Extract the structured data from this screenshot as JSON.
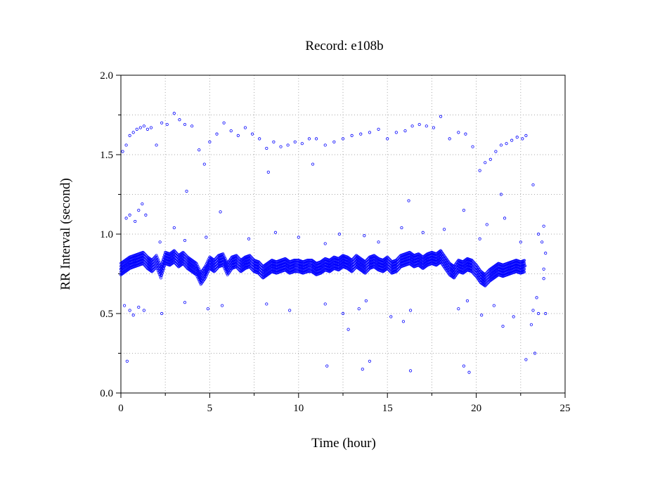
{
  "chart_data": {
    "type": "scatter",
    "title": "Record:  e108b",
    "xlabel": "Time (hour)",
    "ylabel": "RR Interval (second)",
    "xlim": [
      0,
      25
    ],
    "ylim": [
      0.0,
      2.0
    ],
    "x_ticks": [
      "0",
      "5",
      "10",
      "15",
      "20",
      "25"
    ],
    "y_ticks": [
      "0.0",
      "0.5",
      "1.0",
      "1.5",
      "2.0"
    ],
    "grid": true,
    "marker_color": "#0000ff",
    "marker": "open-circle",
    "series": [
      {
        "x": [
          0.0,
          0.25,
          0.5,
          0.75,
          1.0,
          1.25,
          1.5,
          1.75,
          2.0,
          2.25,
          2.5,
          2.75,
          3.0,
          3.25,
          3.5,
          3.75,
          4.0,
          4.25,
          4.5,
          4.75,
          5.0,
          5.25,
          5.5,
          5.75,
          6.0,
          6.25,
          6.5,
          6.75,
          7.0,
          7.25,
          7.5,
          7.75,
          8.0,
          8.25,
          8.5,
          8.75,
          9.0,
          9.25,
          9.5,
          9.75,
          10.0,
          10.25,
          10.5,
          10.75,
          11.0,
          11.25,
          11.5,
          11.75,
          12.0,
          12.25,
          12.5,
          12.75,
          13.0,
          13.25,
          13.5,
          13.75,
          14.0,
          14.25,
          14.5,
          14.75,
          15.0,
          15.25,
          15.5,
          15.75,
          16.0,
          16.25,
          16.5,
          16.75,
          17.0,
          17.25,
          17.5,
          17.75,
          18.0,
          18.25,
          18.5,
          18.75,
          19.0,
          19.25,
          19.5,
          19.75,
          20.0,
          20.25,
          20.5,
          20.75,
          21.0,
          21.25,
          21.5,
          21.75,
          22.0,
          22.25,
          22.5,
          22.75,
          0.1,
          0.3,
          0.5,
          0.7,
          0.9,
          1.1,
          1.3,
          1.5,
          1.7,
          2.0,
          2.3,
          2.6,
          3.0,
          3.3,
          3.6,
          4.0,
          4.4,
          4.7,
          5.0,
          5.4,
          5.8,
          6.2,
          6.6,
          7.0,
          7.4,
          7.8,
          8.2,
          8.6,
          9.0,
          9.4,
          9.8,
          10.2,
          10.6,
          11.0,
          11.5,
          12.0,
          12.5,
          13.0,
          13.5,
          14.0,
          14.5,
          15.0,
          15.5,
          16.0,
          16.4,
          16.8,
          17.2,
          17.6,
          18.0,
          18.5,
          19.0,
          19.4,
          19.8,
          20.2,
          20.5,
          20.8,
          21.1,
          21.4,
          21.7,
          22.0,
          22.3,
          22.6,
          22.8,
          3.7,
          8.3,
          10.8,
          0.3,
          0.5,
          0.8,
          1.0,
          1.2,
          1.4,
          2.2,
          3.0,
          3.6,
          4.8,
          5.6,
          7.2,
          8.7,
          10.0,
          11.5,
          12.3,
          13.7,
          14.5,
          15.8,
          16.2,
          17.0,
          18.2,
          19.3,
          20.2,
          20.6,
          21.4,
          21.6,
          22.5,
          23.5,
          23.8,
          0.2,
          0.5,
          0.7,
          1.0,
          1.3,
          2.3,
          3.6,
          4.9,
          5.7,
          8.2,
          9.5,
          11.5,
          12.5,
          13.4,
          13.8,
          15.2,
          15.9,
          16.3,
          19.0,
          19.5,
          20.3,
          21.0,
          21.5,
          22.1,
          23.2,
          23.5,
          0.35,
          11.6,
          12.8,
          13.6,
          14.0,
          16.3,
          19.3,
          19.6,
          22.8,
          23.3,
          23.7,
          23.1,
          23.8,
          23.8,
          23.9,
          23.4,
          23.9,
          23.2
        ],
        "y": [
          0.78,
          0.8,
          0.82,
          0.83,
          0.84,
          0.85,
          0.82,
          0.8,
          0.83,
          0.76,
          0.85,
          0.84,
          0.86,
          0.83,
          0.85,
          0.82,
          0.8,
          0.78,
          0.72,
          0.76,
          0.82,
          0.8,
          0.83,
          0.84,
          0.78,
          0.82,
          0.83,
          0.8,
          0.82,
          0.83,
          0.8,
          0.79,
          0.76,
          0.78,
          0.8,
          0.79,
          0.8,
          0.81,
          0.79,
          0.8,
          0.8,
          0.79,
          0.8,
          0.8,
          0.78,
          0.79,
          0.81,
          0.8,
          0.82,
          0.81,
          0.83,
          0.82,
          0.8,
          0.83,
          0.81,
          0.79,
          0.82,
          0.83,
          0.81,
          0.8,
          0.82,
          0.79,
          0.8,
          0.83,
          0.84,
          0.85,
          0.83,
          0.84,
          0.82,
          0.84,
          0.85,
          0.84,
          0.86,
          0.82,
          0.78,
          0.76,
          0.8,
          0.79,
          0.81,
          0.8,
          0.77,
          0.73,
          0.71,
          0.74,
          0.76,
          0.78,
          0.77,
          0.78,
          0.79,
          0.8,
          0.79,
          0.8,
          1.52,
          1.56,
          1.62,
          1.64,
          1.66,
          1.67,
          1.68,
          1.66,
          1.67,
          1.56,
          1.7,
          1.69,
          1.76,
          1.72,
          1.69,
          1.68,
          1.53,
          1.44,
          1.58,
          1.63,
          1.7,
          1.65,
          1.62,
          1.67,
          1.63,
          1.6,
          1.54,
          1.58,
          1.55,
          1.56,
          1.58,
          1.57,
          1.6,
          1.6,
          1.56,
          1.58,
          1.6,
          1.62,
          1.63,
          1.64,
          1.66,
          1.6,
          1.64,
          1.65,
          1.68,
          1.69,
          1.68,
          1.67,
          1.74,
          1.6,
          1.64,
          1.63,
          1.55,
          1.4,
          1.45,
          1.47,
          1.52,
          1.56,
          1.57,
          1.59,
          1.61,
          1.6,
          1.62,
          1.27,
          1.39,
          1.44,
          1.1,
          1.12,
          1.08,
          1.15,
          1.19,
          1.12,
          0.95,
          1.04,
          0.96,
          0.98,
          1.14,
          0.97,
          1.01,
          0.98,
          0.94,
          1.0,
          0.99,
          0.95,
          1.04,
          1.21,
          1.01,
          1.03,
          1.15,
          0.97,
          1.06,
          1.25,
          1.1,
          0.95,
          1.0,
          1.05,
          0.55,
          0.52,
          0.49,
          0.54,
          0.52,
          0.5,
          0.57,
          0.53,
          0.55,
          0.56,
          0.52,
          0.56,
          0.5,
          0.53,
          0.58,
          0.48,
          0.45,
          0.52,
          0.53,
          0.58,
          0.49,
          0.55,
          0.42,
          0.48,
          0.52,
          0.5,
          0.2,
          0.17,
          0.4,
          0.15,
          0.2,
          0.14,
          0.17,
          0.13,
          0.21,
          0.25,
          0.95,
          0.43,
          0.72,
          0.78,
          0.88,
          0.6,
          0.5,
          1.31
        ],
        "range_band": {
          "x": [
            0,
            23
          ],
          "ylow": 0.7,
          "yhigh": 0.88
        }
      }
    ]
  }
}
